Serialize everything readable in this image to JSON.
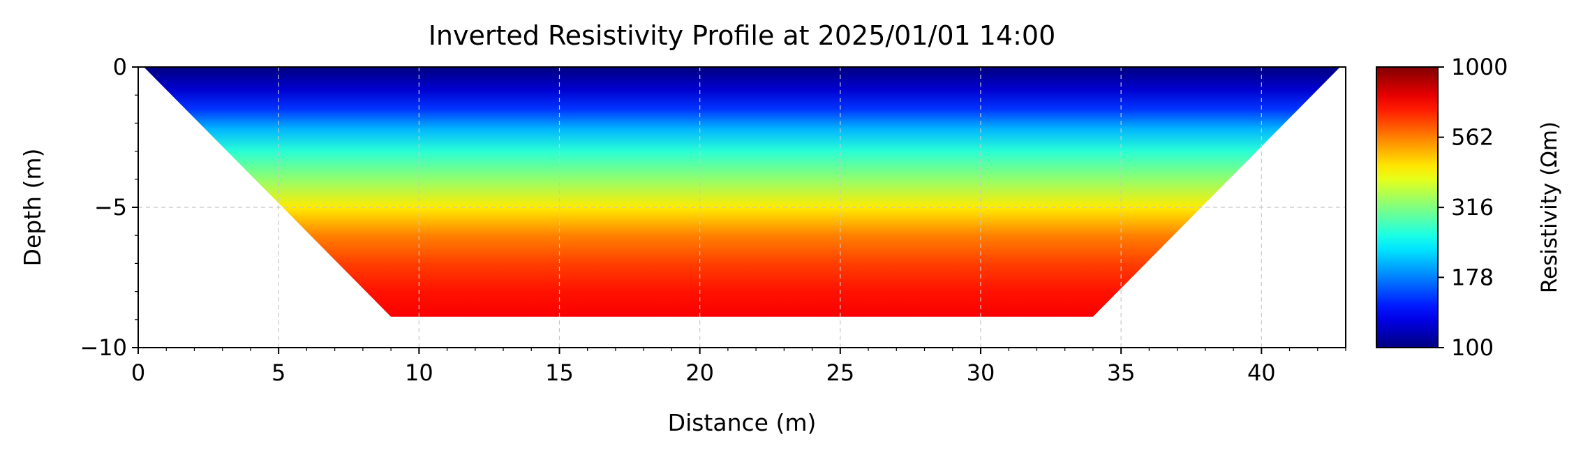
{
  "chart_data": {
    "type": "heatmap",
    "title": "Inverted Resistivity Profile at 2025/01/01 14:00",
    "xlabel": "Distance (m)",
    "ylabel": "Depth (m)",
    "xlim": [
      0,
      43
    ],
    "ylim": [
      -10,
      0
    ],
    "x_ticks": [
      0,
      5,
      10,
      15,
      20,
      25,
      30,
      35,
      40
    ],
    "y_ticks": [
      0,
      -5,
      -10
    ],
    "x_tick_labels": [
      "0",
      "5",
      "10",
      "15",
      "20",
      "25",
      "30",
      "35",
      "40"
    ],
    "y_tick_labels": [
      "0",
      "−5",
      "−10"
    ],
    "grid": true,
    "colormap": "jet",
    "colorbar": {
      "label": "Resistivity (Ωm)",
      "scale": "log",
      "range": [
        100,
        1000
      ],
      "ticks": [
        100,
        178,
        316,
        562,
        1000
      ],
      "tick_labels": [
        "100",
        "178",
        "316",
        "562",
        "1000"
      ]
    },
    "data_region": [
      {
        "distance": 0.2,
        "depth": 0
      },
      {
        "distance": 42.8,
        "depth": 0
      },
      {
        "distance": 34,
        "depth": -8.9
      },
      {
        "distance": 9,
        "depth": -8.9
      }
    ],
    "depth_profile": [
      {
        "depth": 0,
        "resistivity": 100
      },
      {
        "depth": -0.8,
        "resistivity": 120
      },
      {
        "depth": -1.5,
        "resistivity": 150
      },
      {
        "depth": -2.2,
        "resistivity": 200
      },
      {
        "depth": -3.0,
        "resistivity": 260
      },
      {
        "depth": -4.0,
        "resistivity": 330
      },
      {
        "depth": -5.0,
        "resistivity": 440
      },
      {
        "depth": -6.0,
        "resistivity": 560
      },
      {
        "depth": -7.0,
        "resistivity": 650
      },
      {
        "depth": -8.0,
        "resistivity": 720
      },
      {
        "depth": -8.9,
        "resistivity": 760
      }
    ]
  }
}
